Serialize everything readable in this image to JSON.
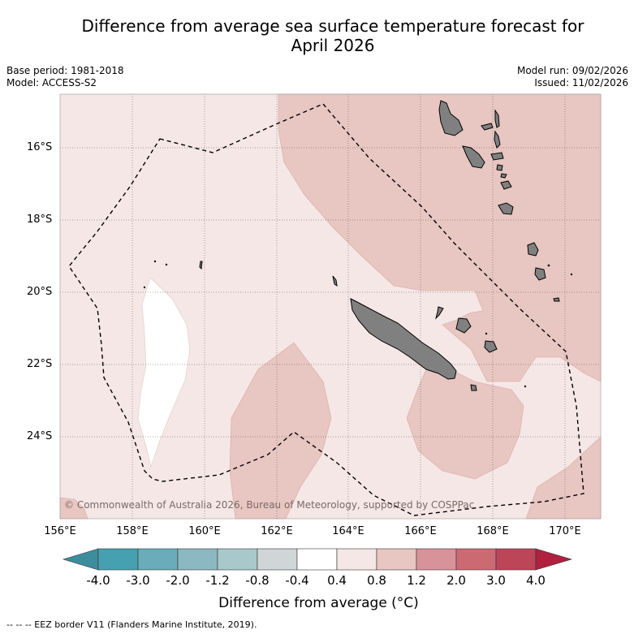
{
  "title": {
    "line1": "Difference from average sea surface temperature forecast for",
    "line2": "April 2026"
  },
  "meta_left": {
    "base_period": "Base period: 1981-2018",
    "model": "Model: ACCESS-S2"
  },
  "meta_right": {
    "model_run": "Model run: 09/02/2026",
    "issued": "Issued: 11/02/2026"
  },
  "map": {
    "lat_labels": [
      "16°S",
      "18°S",
      "20°S",
      "22°S",
      "24°S"
    ],
    "lon_labels": [
      "156°E",
      "158°E",
      "160°E",
      "162°E",
      "164°E",
      "166°E",
      "168°E",
      "170°E"
    ],
    "copyright": "© Commonwealth of Australia 2026, Bureau of Meteorology, supported by COSPPac",
    "regions": [
      "New Caledonia",
      "Vanuatu",
      "Loyalty Islands"
    ]
  },
  "colorbar": {
    "ticks": [
      "-4.0",
      "-3.0",
      "-2.0",
      "-1.2",
      "-0.8",
      "-0.4",
      "0.4",
      "0.8",
      "1.2",
      "2.0",
      "3.0",
      "4.0"
    ],
    "colors": [
      "#3c8e9c",
      "#45a0b0",
      "#6aacb9",
      "#8cb8c2",
      "#a9c8cc",
      "#d0d6d8",
      "#ffffff",
      "#f5e7e5",
      "#e8c6c1",
      "#d7929a",
      "#cc6a74",
      "#bd4558",
      "#b0203f"
    ],
    "label": "Difference from average (°C)"
  },
  "footer": "--  --  -- EEZ border V11 (Flanders Marine Institute, 2019)."
}
